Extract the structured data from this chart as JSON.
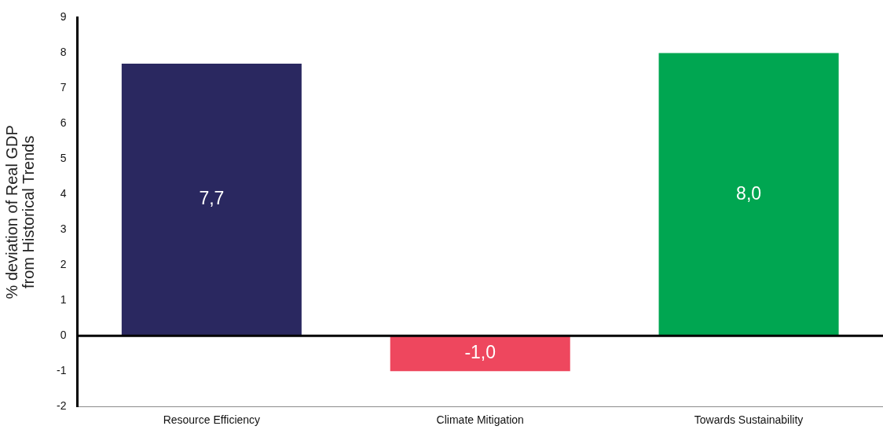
{
  "chart_data": {
    "type": "bar",
    "ylabel": "% deviation of Real GDP\nfrom Historical Trends",
    "categories": [
      "Resource Efficiency",
      "Climate Mitigation",
      "Towards Sustainability"
    ],
    "values": [
      7.7,
      -1.0,
      8.0
    ],
    "colors": [
      "#2a2860",
      "#ee475e",
      "#00a651"
    ],
    "value_labels": [
      "7,7",
      "-1,0",
      "8,0"
    ],
    "ylim": [
      -2,
      9
    ],
    "yticks": [
      -2,
      -1,
      0,
      1,
      2,
      3,
      4,
      5,
      6,
      7,
      8,
      9
    ],
    "grid": false,
    "legend": false,
    "ref_lines": [
      {
        "axis": "y",
        "value": 0,
        "color": "#000000"
      }
    ]
  }
}
